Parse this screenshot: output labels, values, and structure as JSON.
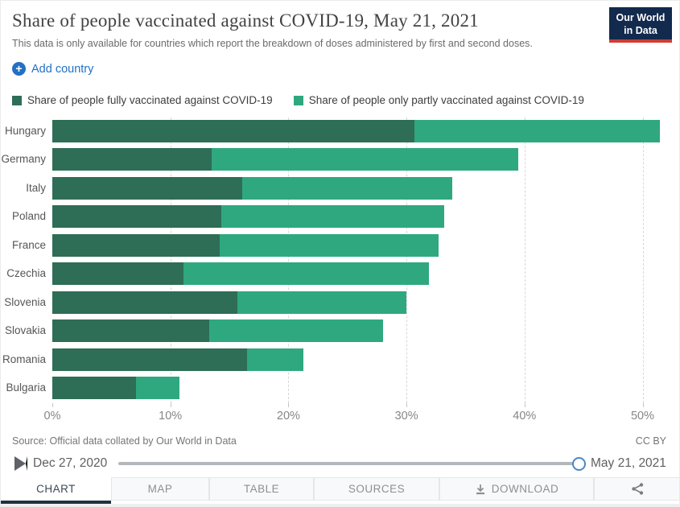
{
  "header": {
    "title": "Share of people vaccinated against COVID-19, May 21, 2021",
    "subtitle": "This data is only available for countries which report the breakdown of doses administered by first and second doses.",
    "logo": {
      "line1": "Our World",
      "line2": "in Data"
    }
  },
  "controls": {
    "add_country_label": "Add country"
  },
  "legend": [
    {
      "label": "Share of people fully vaccinated against COVID-19",
      "color": "#2e6d56"
    },
    {
      "label": "Share of people only partly vaccinated against COVID-19",
      "color": "#2fa880"
    }
  ],
  "chart_data": {
    "type": "bar",
    "orientation": "horizontal",
    "stacked": true,
    "categories": [
      "Hungary",
      "Germany",
      "Italy",
      "Poland",
      "France",
      "Czechia",
      "Slovenia",
      "Slovakia",
      "Romania",
      "Bulgaria"
    ],
    "series": [
      {
        "name": "Share of people fully vaccinated against COVID-19",
        "color": "#2e6d56",
        "values": [
          30.7,
          13.5,
          16.1,
          14.3,
          14.2,
          11.1,
          15.7,
          13.3,
          16.5,
          7.1
        ]
      },
      {
        "name": "Share of people only partly vaccinated against COVID-19",
        "color": "#2fa880",
        "values": [
          20.8,
          26.0,
          17.8,
          18.9,
          18.5,
          20.8,
          14.3,
          14.7,
          4.8,
          3.7
        ]
      }
    ],
    "totals": [
      51.5,
      39.5,
      33.9,
      33.2,
      32.7,
      31.9,
      30.0,
      28.0,
      21.3,
      10.8
    ],
    "x_ticks": [
      "0%",
      "10%",
      "20%",
      "30%",
      "40%",
      "50%"
    ],
    "x_tick_values": [
      0,
      10,
      20,
      30,
      40,
      50
    ],
    "xlim": [
      0,
      51.6
    ],
    "grid": "vertical-dashed"
  },
  "footer": {
    "source": "Source: Official data collated by Our World in Data",
    "license": "CC BY"
  },
  "timeline": {
    "start": "Dec 27, 2020",
    "end": "May 21, 2021"
  },
  "tabs": [
    {
      "label": "CHART",
      "active": true
    },
    {
      "label": "MAP",
      "active": false
    },
    {
      "label": "TABLE",
      "active": false
    },
    {
      "label": "SOURCES",
      "active": false
    },
    {
      "label": "DOWNLOAD",
      "active": false,
      "icon": "download-icon"
    },
    {
      "label": "",
      "active": false,
      "icon": "share-icon"
    }
  ],
  "colors": {
    "accent_blue": "#2271c2",
    "fully_green": "#2e6d56",
    "partly_green": "#2fa880",
    "logo_navy": "#122a4d",
    "logo_red": "#cf3d32",
    "tab_active_underline": "#223040"
  }
}
